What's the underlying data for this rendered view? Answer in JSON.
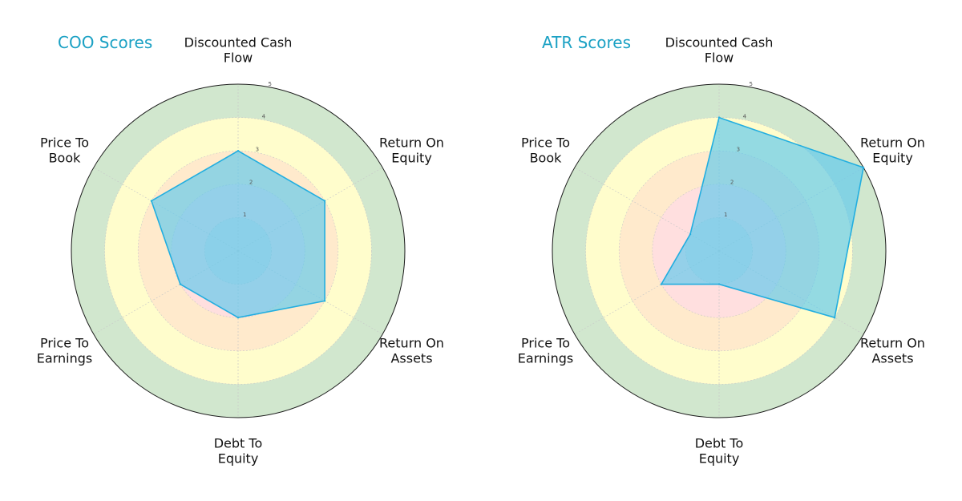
{
  "colors": {
    "title": "#1ba1c4",
    "fill": "#5bc8ee",
    "stroke": "#22aee0",
    "ring_green": "#d1e7ce",
    "ring_yellow": "#fffdcc",
    "ring_orange": "#ffeacc",
    "ring_pink": "#ffdfdf",
    "ring_grey": "#e6e0e0",
    "outline": "#1a1a1a"
  },
  "chart_data": [
    {
      "type": "radar",
      "title": "COO Scores",
      "axes": [
        [
          "Discounted Cash",
          "Flow"
        ],
        [
          "Return On",
          "Equity"
        ],
        [
          "Return On",
          "Assets"
        ],
        [
          "Debt To",
          "Equity"
        ],
        [
          "Price To",
          "Earnings"
        ],
        [
          "Price To",
          "Book"
        ]
      ],
      "ticks": [
        "1",
        "2",
        "3",
        "4",
        "5"
      ],
      "rmax": 5,
      "values": [
        3,
        3,
        3,
        2,
        2,
        3
      ]
    },
    {
      "type": "radar",
      "title": "ATR Scores",
      "axes": [
        [
          "Discounted Cash",
          "Flow"
        ],
        [
          "Return On",
          "Equity"
        ],
        [
          "Return On",
          "Assets"
        ],
        [
          "Debt To",
          "Equity"
        ],
        [
          "Price To",
          "Earnings"
        ],
        [
          "Price To",
          "Book"
        ]
      ],
      "ticks": [
        "1",
        "2",
        "3",
        "4",
        "5"
      ],
      "rmax": 5,
      "values": [
        4,
        5,
        4,
        1,
        2,
        1
      ]
    }
  ]
}
